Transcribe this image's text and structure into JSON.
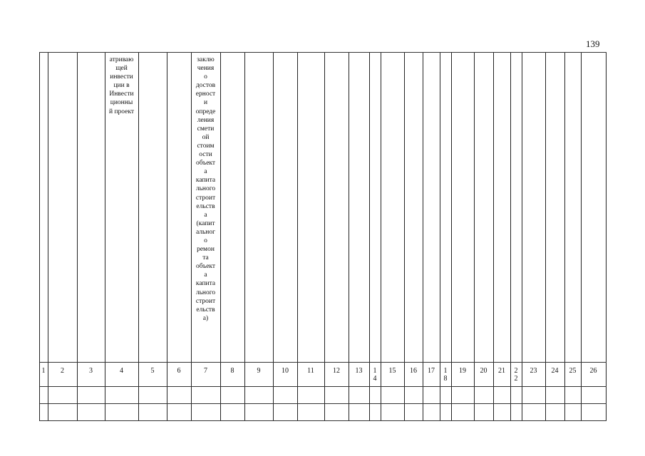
{
  "page_number": "139",
  "header_cells": {
    "col4": [
      "атриваю",
      "щей",
      "инвести",
      "ции в",
      "Инвести",
      "ционны",
      "й проект"
    ],
    "col7": [
      "заклю",
      "чения",
      "о",
      "достов",
      "ерност",
      "и",
      "опреде",
      "ления",
      "смети",
      "ой",
      "стоим",
      "ости",
      "объект",
      "а",
      "капита",
      "льного",
      "строит",
      "ельств",
      "а",
      "(капит",
      "альног",
      "о",
      "ремон",
      "та",
      "объект",
      "а",
      "капита",
      "льного",
      "строит",
      "ельств",
      "а)"
    ]
  },
  "column_numbers": [
    "1",
    "2",
    "3",
    "4",
    "5",
    "6",
    "7",
    "8",
    "9",
    "10",
    "11",
    "12",
    "13",
    "1\n4",
    "15",
    "16",
    "17",
    "1\n8",
    "19",
    "20",
    "21",
    "2\n2",
    "23",
    "24",
    "25",
    "26"
  ],
  "empty_rows": 2
}
